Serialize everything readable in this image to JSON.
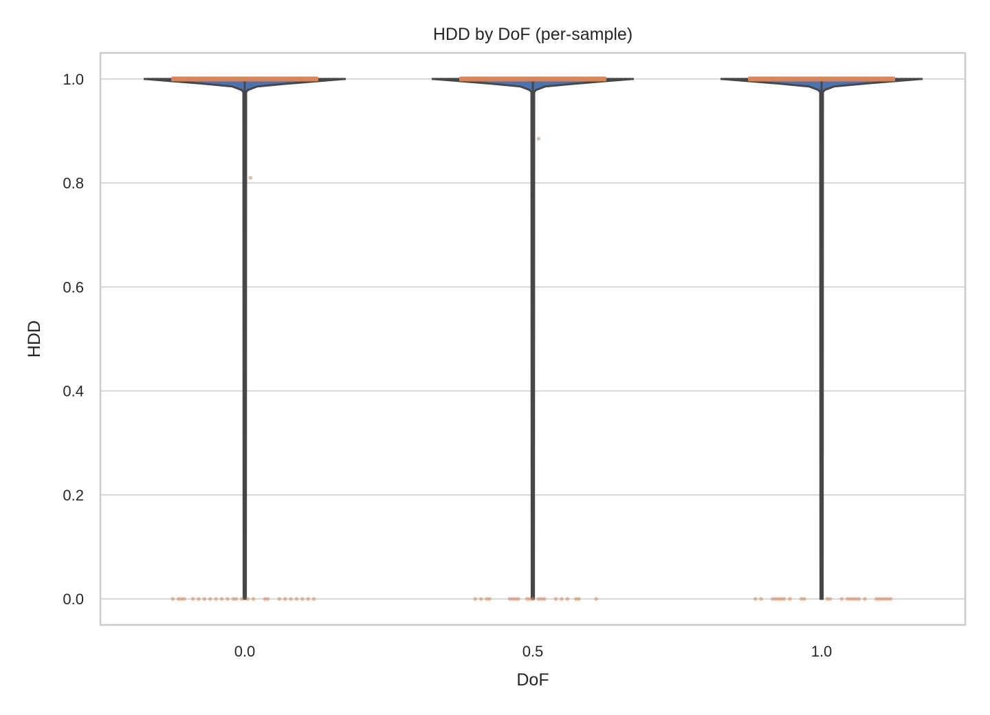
{
  "chart_data": {
    "type": "violin",
    "title": "HDD by DoF (per-sample)",
    "xlabel": "DoF",
    "ylabel": "HDD",
    "categories": [
      "0.0",
      "0.5",
      "1.0"
    ],
    "ylim": [
      -0.05,
      1.05
    ],
    "yticks": [
      "0.0",
      "0.2",
      "0.4",
      "0.6",
      "0.8",
      "1.0"
    ],
    "grid": "horizontal",
    "legend": "none",
    "colors": {
      "violin_fill": "#4c72b0",
      "violin_edge": "#474747",
      "box_and_points": "#dd8452",
      "grid": "#cccccc",
      "frame": "#cccccc"
    },
    "violins": [
      {
        "category": "0.0",
        "median": 1.0,
        "q1": 1.0,
        "q3": 1.0,
        "min": 0.0,
        "max": 1.0
      },
      {
        "category": "0.5",
        "median": 1.0,
        "q1": 1.0,
        "q3": 1.0,
        "min": 0.0,
        "max": 1.0
      },
      {
        "category": "1.0",
        "median": 1.0,
        "q1": 1.0,
        "q3": 1.0,
        "min": 0.0,
        "max": 1.0
      }
    ],
    "points": [
      {
        "category": "0.0",
        "jitter": [
          -0.125,
          -0.115,
          -0.11,
          -0.105,
          -0.09,
          -0.08,
          -0.07,
          -0.06,
          -0.05,
          -0.04,
          -0.03,
          -0.02,
          -0.015,
          -0.005,
          0.005,
          0.015,
          0.035,
          0.04,
          0.06,
          0.07,
          0.08,
          0.09,
          0.1,
          0.11,
          0.12
        ],
        "y": 0.0
      },
      {
        "category": "0.0",
        "jitter": [
          0.01
        ],
        "y": 0.81
      },
      {
        "category": "0.5",
        "jitter": [
          -0.1,
          -0.09,
          -0.08,
          -0.075,
          -0.04,
          -0.035,
          -0.03,
          -0.025,
          -0.01,
          -0.005,
          0.0,
          0.01,
          0.015,
          0.02,
          0.04,
          0.05,
          0.06,
          0.075,
          0.08,
          0.11
        ],
        "y": 0.0
      },
      {
        "category": "0.5",
        "jitter": [
          0.01
        ],
        "y": 0.885
      },
      {
        "category": "1.0",
        "jitter": [
          -0.115,
          -0.105,
          -0.085,
          -0.08,
          -0.075,
          -0.07,
          -0.065,
          -0.055,
          -0.035,
          -0.03,
          0.01,
          0.015,
          0.035,
          0.045,
          0.05,
          0.055,
          0.06,
          0.065,
          0.075,
          0.095,
          0.1,
          0.105,
          0.11,
          0.115,
          0.12
        ],
        "y": 0.0
      }
    ]
  }
}
